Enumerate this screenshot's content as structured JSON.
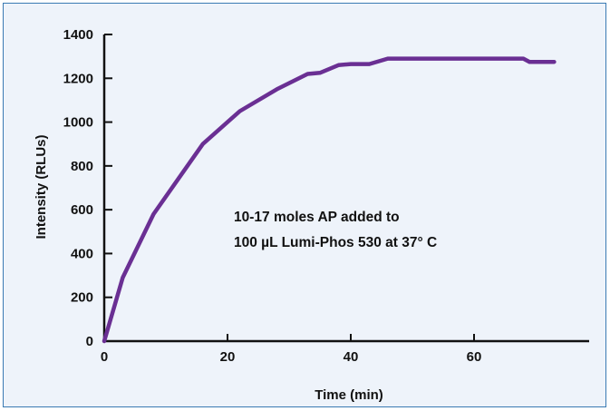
{
  "chart_data": {
    "type": "line",
    "title": "",
    "xlabel": "Time (min)",
    "ylabel": "Intensity (RLUs)",
    "xlim": [
      0,
      75
    ],
    "ylim": [
      0,
      1400
    ],
    "x_ticks": [
      0,
      20,
      40,
      60
    ],
    "y_ticks": [
      0,
      200,
      400,
      600,
      800,
      1000,
      1200,
      1400
    ],
    "grid": false,
    "annotation": [
      "10-17 moles AP added to",
      "100 µL Lumi-Phos 530 at 37° C"
    ],
    "colors": {
      "line": "#6a2f93",
      "frame": "#3a7ab3",
      "background": "#eef3fa"
    },
    "series": [
      {
        "x": [
          0,
          3,
          8,
          12,
          16,
          22,
          28,
          33,
          35,
          38,
          40,
          43,
          46,
          50,
          55,
          60,
          68,
          69,
          73
        ],
        "y": [
          0,
          290,
          580,
          740,
          900,
          1050,
          1150,
          1220,
          1225,
          1260,
          1265,
          1265,
          1290,
          1290,
          1290,
          1290,
          1290,
          1275,
          1275
        ]
      }
    ]
  }
}
